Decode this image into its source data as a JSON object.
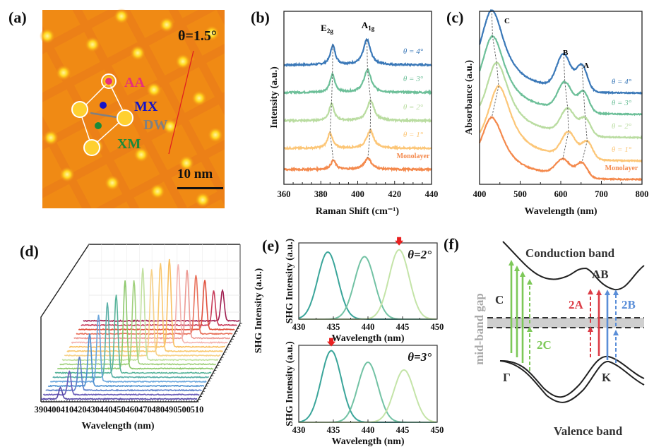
{
  "figure": {
    "panel_labels": {
      "a": "(a)",
      "b": "(b)",
      "c": "(c)",
      "d": "(d)",
      "e": "(e)",
      "f": "(f)"
    }
  },
  "panel_a": {
    "twist_label": "θ=1.5°",
    "scale_bar_label": "10 nm",
    "site_labels": [
      {
        "text": "AA",
        "color": "#e8307a"
      },
      {
        "text": "MX",
        "color": "#1414c8"
      },
      {
        "text": "DW",
        "color": "#808080"
      },
      {
        "text": "XM",
        "color": "#1a8a3a"
      }
    ],
    "colors": {
      "background": "#f08a14",
      "spot": "#ffd81e",
      "marker_ring": "#ffffff",
      "line": "#e02020"
    }
  },
  "chart_data": [
    {
      "id": "b",
      "type": "line",
      "title": "",
      "xlabel": "Raman Shift (cm⁻¹)",
      "ylabel": "Intensity (a.u.)",
      "xlim": [
        360,
        440
      ],
      "xticks": [
        360,
        380,
        400,
        420,
        440
      ],
      "peak_labels": [
        "E2g",
        "A1g"
      ],
      "series": [
        {
          "name": "θ = 4°",
          "color": "#3a78b8",
          "offset": 4,
          "E2g_pos": 386.5,
          "E2g_height": 0.6,
          "A1g_pos": 405.0,
          "A1g_height": 0.78
        },
        {
          "name": "θ = 3°",
          "color": "#6cbf98",
          "offset": 3,
          "E2g_pos": 386.3,
          "E2g_height": 0.55,
          "A1g_pos": 405.3,
          "A1g_height": 0.7
        },
        {
          "name": "θ = 2°",
          "color": "#b9dca0",
          "offset": 2,
          "E2g_pos": 385.8,
          "E2g_height": 0.52,
          "A1g_pos": 407.0,
          "A1g_height": 0.62
        },
        {
          "name": "θ = 1°",
          "color": "#fcc677",
          "offset": 1,
          "E2g_pos": 385.0,
          "E2g_height": 0.48,
          "A1g_pos": 406.8,
          "A1g_height": 0.55
        },
        {
          "name": "Monolayer",
          "color": "#f4894c",
          "offset": 0,
          "E2g_pos": 386.8,
          "E2g_height": 0.28,
          "A1g_pos": 405.5,
          "A1g_height": 0.35
        }
      ]
    },
    {
      "id": "c",
      "type": "line",
      "title": "",
      "xlabel": "Wavelength (nm)",
      "ylabel": "Absorbance (a.u.)",
      "xlim": [
        400,
        800
      ],
      "xticks": [
        400,
        500,
        600,
        700,
        800
      ],
      "peak_labels": [
        "C",
        "B",
        "A"
      ],
      "series": [
        {
          "name": "θ = 4°",
          "color": "#3a78b8",
          "offset": 4,
          "C_pos": 430,
          "B_pos": 607,
          "A_pos": 652
        },
        {
          "name": "θ = 3°",
          "color": "#6cbf98",
          "offset": 3,
          "C_pos": 432,
          "B_pos": 610,
          "A_pos": 656
        },
        {
          "name": "θ = 2°",
          "color": "#b9dca0",
          "offset": 2,
          "C_pos": 442,
          "B_pos": 617,
          "A_pos": 660
        },
        {
          "name": "θ = 1°",
          "color": "#fcc677",
          "offset": 1,
          "C_pos": 447,
          "B_pos": 619,
          "A_pos": 665
        },
        {
          "name": "Monolayer",
          "color": "#f4894c",
          "offset": 0,
          "C_pos": 430,
          "B_pos": 605,
          "A_pos": 652
        }
      ]
    },
    {
      "id": "d",
      "type": "line",
      "title": "",
      "xlabel": "Wavelength (nm)",
      "ylabel": "SHG Intensity (a.u.)",
      "xlim": [
        390,
        515
      ],
      "xticks": [
        390,
        400,
        410,
        420,
        430,
        440,
        450,
        460,
        470,
        480,
        490,
        500,
        510
      ],
      "series": [
        {
          "peak": 405,
          "height": 0.12,
          "color": "#5a4aa8"
        },
        {
          "peak": 410,
          "height": 0.24,
          "color": "#6a5cb8"
        },
        {
          "peak": 416,
          "height": 0.35,
          "color": "#5b7ec8"
        },
        {
          "peak": 422,
          "height": 0.55,
          "color": "#4c8fd0"
        },
        {
          "peak": 427,
          "height": 0.7,
          "color": "#6aa6dc"
        },
        {
          "peak": 432,
          "height": 0.78,
          "color": "#5ab0a8"
        },
        {
          "peak": 437,
          "height": 0.82,
          "color": "#58b49a"
        },
        {
          "peak": 442,
          "height": 0.92,
          "color": "#8cc86a"
        },
        {
          "peak": 447,
          "height": 0.88,
          "color": "#a0d07c"
        },
        {
          "peak": 452,
          "height": 0.96,
          "color": "#c2e0a0"
        },
        {
          "peak": 457,
          "height": 0.9,
          "color": "#f7d28a"
        },
        {
          "peak": 462,
          "height": 0.92,
          "color": "#f9c870"
        },
        {
          "peak": 467,
          "height": 0.92,
          "color": "#f8bf60"
        },
        {
          "peak": 472,
          "height": 0.82,
          "color": "#f4b4b0"
        },
        {
          "peak": 477,
          "height": 0.72,
          "color": "#ec9a94"
        },
        {
          "peak": 482,
          "height": 0.62,
          "color": "#e8705a"
        },
        {
          "peak": 487,
          "height": 0.52,
          "color": "#e0503c"
        },
        {
          "peak": 492,
          "height": 0.36,
          "color": "#c83c5a"
        },
        {
          "peak": 497,
          "height": 0.32,
          "color": "#a01e50"
        }
      ]
    },
    {
      "id": "e-top",
      "type": "line",
      "title": "θ=2°",
      "xlabel": "Wavelength (nm)",
      "ylabel": "SHG Intensity (a.u.)",
      "xlim": [
        430,
        450
      ],
      "xticks": [
        430,
        435,
        440,
        445,
        450
      ],
      "highlight_peak": 444.5,
      "series": [
        {
          "peak": 434.2,
          "height": 0.88,
          "color": "#3aa59a"
        },
        {
          "peak": 439.5,
          "height": 0.82,
          "color": "#72c2a4"
        },
        {
          "peak": 444.5,
          "height": 0.91,
          "color": "#c4e4a8"
        }
      ]
    },
    {
      "id": "e-bottom",
      "type": "line",
      "title": "θ=3°",
      "xlabel": "Wavelength (nm)",
      "ylabel": "SHG Intensity (a.u.)",
      "xlim": [
        430,
        450
      ],
      "xticks": [
        430,
        435,
        440,
        445,
        450
      ],
      "highlight_peak": 434.7,
      "series": [
        {
          "peak": 434.7,
          "height": 0.93,
          "color": "#3aa59a"
        },
        {
          "peak": 440.0,
          "height": 0.78,
          "color": "#72c2a4"
        },
        {
          "peak": 445.2,
          "height": 0.68,
          "color": "#c4e4a8"
        }
      ]
    }
  ],
  "panel_f": {
    "conduction_band": "Conduction band",
    "valence_band": "Valence band",
    "gap_label": "mid-band gap",
    "labels": {
      "C": "C",
      "twoC": "2C",
      "AB": "AB",
      "twoA": "2A",
      "twoB": "2B",
      "Gamma": "Γ",
      "K": "K"
    },
    "colors": {
      "green": "#7dc858",
      "red": "#dc3c46",
      "blue": "#5a8ed8",
      "gap": "#cfcfcf",
      "gap_text": "#a8a8a8"
    }
  }
}
